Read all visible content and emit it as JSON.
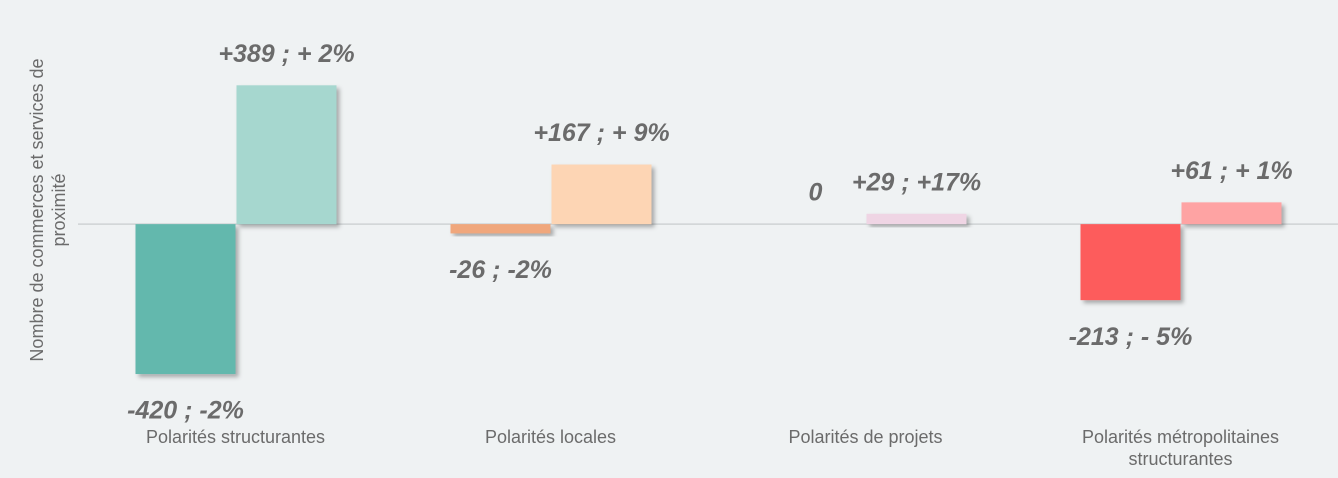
{
  "chart_data": {
    "type": "bar",
    "ylabel": "Nombre de commerces et services de proximité",
    "categories": [
      "Polarités structurantes",
      "Polarités locales",
      "Polarités de projets",
      "Polarités métropolitaines structurantes"
    ],
    "series": [
      {
        "colors": [
          "#63b8ad",
          "#f0a77b",
          "#efd5e4",
          "#fd5c5c"
        ],
        "values": [
          -420,
          -26,
          0,
          -213
        ],
        "value_labels": [
          "-420 ; -2%",
          "-26 ; -2%",
          "0",
          "-213 ; - 5%"
        ]
      },
      {
        "colors": [
          "#a6d7cf",
          "#fdd5b4",
          "#efd5e4",
          "#fea3a3"
        ],
        "values": [
          389,
          167,
          29,
          61
        ],
        "value_labels": [
          "+389 ; + 2%",
          "+167 ; + 9%",
          "+29 ; +17%",
          "+61 ; + 1%"
        ]
      }
    ],
    "ylim": [
      -560,
      600
    ]
  }
}
